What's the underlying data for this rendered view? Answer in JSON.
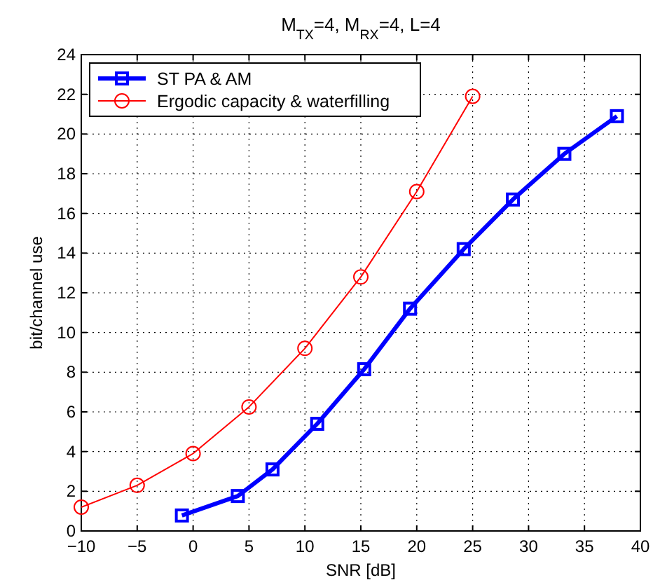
{
  "chart_data": {
    "type": "line",
    "title": "M$_{TX}$=4, M$_{RX}$=4, L=4",
    "xlabel": "SNR [dB]",
    "ylabel": "bit/channel use",
    "xlim": [
      -10,
      40
    ],
    "xticks": [
      -10,
      -5,
      0,
      5,
      10,
      15,
      20,
      25,
      30,
      35,
      40
    ],
    "ylim": [
      0,
      24
    ],
    "yticks": [
      0,
      2,
      4,
      6,
      8,
      10,
      12,
      14,
      16,
      18,
      20,
      22,
      24
    ],
    "grid": true,
    "legend": "top left",
    "series": [
      {
        "name": "ST PA & AM",
        "color": "#0000ff",
        "marker": "square",
        "x": [
          -1,
          4,
          7.1,
          11.1,
          15.3,
          19.4,
          24.2,
          28.6,
          33.2,
          37.9
        ],
        "values": [
          0.78,
          1.76,
          3.1,
          5.4,
          8.15,
          11.2,
          14.2,
          16.7,
          19,
          20.9
        ]
      },
      {
        "name": "Ergodic capacity & waterfilling",
        "color": "#ff0000",
        "marker": "circle",
        "x": [
          -10,
          -5,
          0,
          5,
          10,
          15,
          20,
          25
        ],
        "values": [
          1.2,
          2.3,
          3.9,
          6.25,
          9.2,
          12.8,
          17.1,
          21.9
        ]
      }
    ]
  }
}
